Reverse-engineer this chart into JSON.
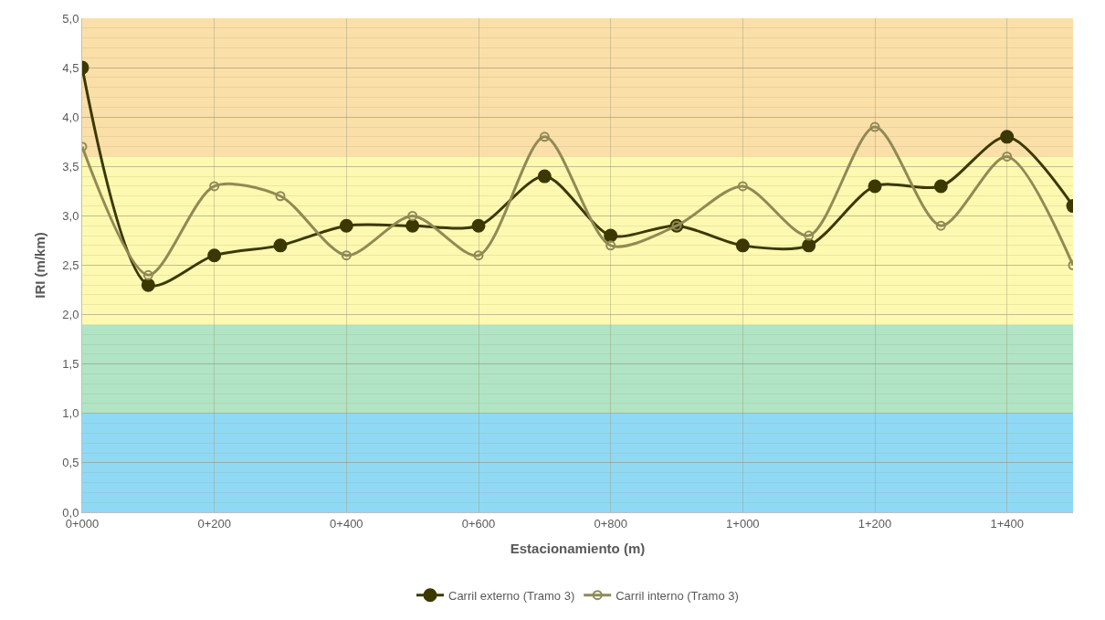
{
  "chart_data": {
    "type": "line",
    "xlabel": "Estacionamiento (m)",
    "ylabel": "IRI (m/km)",
    "categories": [
      "0+000",
      null,
      "0+200",
      null,
      "0+400",
      null,
      "0+600",
      null,
      "0+800",
      null,
      "1+000",
      null,
      "1+200",
      null,
      "1+400",
      null
    ],
    "series": [
      {
        "name": "Carril externo (Tramo 3)",
        "color": "#3b3800",
        "marker": "circle",
        "values": [
          4.5,
          2.3,
          2.6,
          2.7,
          2.9,
          2.9,
          2.9,
          3.4,
          2.8,
          2.9,
          2.7,
          2.7,
          3.3,
          3.3,
          3.8,
          3.1
        ]
      },
      {
        "name": "Carril interno (Tramo 3)",
        "color": "#8f8a55",
        "marker": "circle-open",
        "values": [
          3.7,
          2.4,
          3.3,
          3.2,
          2.6,
          3.0,
          2.6,
          3.8,
          2.7,
          2.9,
          3.3,
          2.8,
          3.9,
          2.9,
          3.6,
          2.5
        ]
      }
    ],
    "ylim": [
      0,
      5
    ],
    "yticks": [
      {
        "value": 0,
        "label": "0,0"
      },
      {
        "value": 0.5,
        "label": "0,5"
      },
      {
        "value": 1,
        "label": "1,0"
      },
      {
        "value": 1.5,
        "label": "1,5"
      },
      {
        "value": 2,
        "label": "2,0"
      },
      {
        "value": 2.5,
        "label": "2,5"
      },
      {
        "value": 3,
        "label": "3,0"
      },
      {
        "value": 3.5,
        "label": "3,5"
      },
      {
        "value": 4,
        "label": "4,0"
      },
      {
        "value": 4.5,
        "label": "4,5"
      },
      {
        "value": 5,
        "label": "5,0"
      }
    ],
    "bands": [
      {
        "axis": "y",
        "from": 0,
        "to": 1,
        "color": "#8fd9f5"
      },
      {
        "axis": "y",
        "from": 1,
        "to": 1.9,
        "color": "#b0e4c5"
      },
      {
        "axis": "y",
        "from": 1.9,
        "to": 3.6,
        "color": "#fdf9b0"
      },
      {
        "axis": "y",
        "from": 3.6,
        "to": 5,
        "color": "#fbdfa8"
      }
    ],
    "grid": true,
    "legend": "bottom"
  }
}
